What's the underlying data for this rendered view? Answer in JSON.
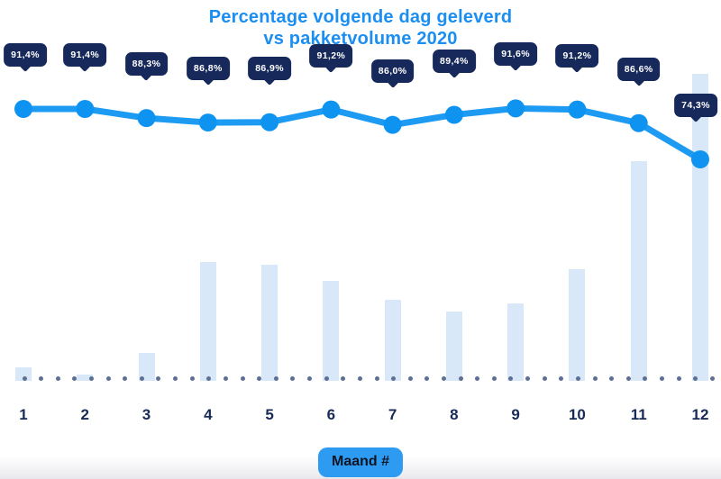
{
  "title": {
    "line1": "Percentage volgende dag geleverd",
    "line2": "vs pakketvolume 2020"
  },
  "xaxis_button": {
    "label": "Maand #"
  },
  "colors": {
    "title_blue": "#1b8ef2",
    "line_blue": "#1d9bf3",
    "marker_blue": "#0f93f1",
    "bar_light_blue": "#d9e8f8",
    "badge_navy": "#16295a",
    "month_label_navy": "#182b56",
    "baseline_dot_gray": "#5d6f94",
    "button_blue": "#2e9bf2",
    "button_text_dark": "#101522"
  },
  "chart_data": {
    "type": "line",
    "combo": "line over bar columns",
    "title": "Percentage volgende dag geleverd vs pakketvolume 2020",
    "categories": [
      "1",
      "2",
      "3",
      "4",
      "5",
      "6",
      "7",
      "8",
      "9",
      "10",
      "11",
      "12"
    ],
    "xlabel": "Maand #",
    "legend": "none",
    "grid": "dotted baseline only",
    "series": [
      {
        "name": "Percentage volgende dag geleverd",
        "type": "line",
        "unit": "%",
        "values": [
          91.4,
          91.4,
          88.3,
          86.8,
          86.9,
          91.2,
          86.0,
          89.4,
          91.6,
          91.2,
          86.6,
          74.3
        ],
        "labels": [
          "91,4%",
          "91,4%",
          "88,3%",
          "86,8%",
          "86,9%",
          "91,2%",
          "86,0%",
          "89,4%",
          "91,6%",
          "91,2%",
          "86,6%",
          "74,3%"
        ]
      },
      {
        "name": "Pakketvolume 2020",
        "type": "bar",
        "unit": "relative height, no value axis shown (max month = 100)",
        "values": [
          4.4,
          2.1,
          9.1,
          38.7,
          37.8,
          32.6,
          26.4,
          22.6,
          25.2,
          36.4,
          71.6,
          100
        ]
      }
    ]
  }
}
